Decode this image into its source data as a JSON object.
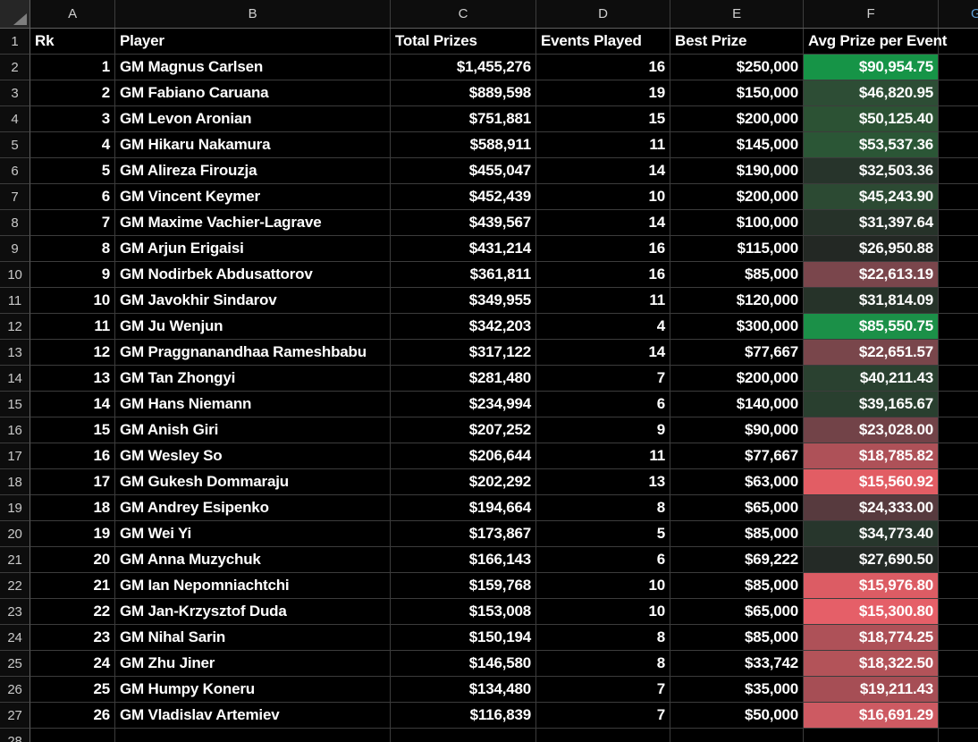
{
  "sheet": {
    "corner": {
      "icon": "select-all-triangle"
    },
    "column_letters": [
      "A",
      "B",
      "C",
      "D",
      "E",
      "F"
    ],
    "clipped_last_column_letter": "G",
    "header_row": {
      "row_number": "1",
      "labels": [
        "Rk",
        "Player",
        "Total Prizes",
        "Events Played",
        "Best Prize",
        "Avg Prize per Event"
      ]
    },
    "rows": [
      {
        "row": "2",
        "rk": "1",
        "player": "GM Magnus Carlsen",
        "total": "$1,455,276",
        "events": "16",
        "best": "$250,000",
        "avg": "$90,954.75",
        "avg_color": "#169447"
      },
      {
        "row": "3",
        "rk": "2",
        "player": "GM Fabiano Caruana",
        "total": "$889,598",
        "events": "19",
        "best": "$150,000",
        "avg": "$46,820.95",
        "avg_color": "#2D4D35"
      },
      {
        "row": "4",
        "rk": "3",
        "player": "GM Levon Aronian",
        "total": "$751,881",
        "events": "15",
        "best": "$200,000",
        "avg": "$50,125.40",
        "avg_color": "#2C5234"
      },
      {
        "row": "5",
        "rk": "4",
        "player": "GM Hikaru Nakamura",
        "total": "$588,911",
        "events": "11",
        "best": "$145,000",
        "avg": "$53,537.36",
        "avg_color": "#2B5636"
      },
      {
        "row": "6",
        "rk": "5",
        "player": "GM Alireza Firouzja",
        "total": "$455,047",
        "events": "14",
        "best": "$190,000",
        "avg": "$32,503.36",
        "avg_color": "#27342B"
      },
      {
        "row": "7",
        "rk": "6",
        "player": "GM Vincent Keymer",
        "total": "$452,439",
        "events": "10",
        "best": "$200,000",
        "avg": "$45,243.90",
        "avg_color": "#2C4A33"
      },
      {
        "row": "8",
        "rk": "7",
        "player": "GM Maxime Vachier-Lagrave",
        "total": "$439,567",
        "events": "14",
        "best": "$100,000",
        "avg": "$31,397.64",
        "avg_color": "#263229"
      },
      {
        "row": "9",
        "rk": "8",
        "player": "GM Arjun Erigaisi",
        "total": "$431,214",
        "events": "16",
        "best": "$115,000",
        "avg": "$26,950.88",
        "avg_color": "#232824"
      },
      {
        "row": "10",
        "rk": "9",
        "player": "GM Nodirbek Abdusattorov",
        "total": "$361,811",
        "events": "16",
        "best": "$85,000",
        "avg": "$22,613.19",
        "avg_color": "#7A464C"
      },
      {
        "row": "11",
        "rk": "10",
        "player": "GM Javokhir Sindarov",
        "total": "$349,955",
        "events": "11",
        "best": "$120,000",
        "avg": "$31,814.09",
        "avg_color": "#263329"
      },
      {
        "row": "12",
        "rk": "11",
        "player": "GM Ju Wenjun",
        "total": "$342,203",
        "events": "4",
        "best": "$300,000",
        "avg": "$85,550.75",
        "avg_color": "#1B9048"
      },
      {
        "row": "13",
        "rk": "12",
        "player": "GM Praggnanandhaa Rameshbabu",
        "total": "$317,122",
        "events": "14",
        "best": "$77,667",
        "avg": "$22,651.57",
        "avg_color": "#79464B"
      },
      {
        "row": "14",
        "rk": "13",
        "player": "GM Tan Zhongyi",
        "total": "$281,480",
        "events": "7",
        "best": "$200,000",
        "avg": "$40,211.43",
        "avg_color": "#2A4130"
      },
      {
        "row": "15",
        "rk": "14",
        "player": "GM Hans Niemann",
        "total": "$234,994",
        "events": "6",
        "best": "$140,000",
        "avg": "$39,165.67",
        "avg_color": "#293F2F"
      },
      {
        "row": "16",
        "rk": "15",
        "player": "GM Anish Giri",
        "total": "$207,252",
        "events": "9",
        "best": "$90,000",
        "avg": "$23,028.00",
        "avg_color": "#724348"
      },
      {
        "row": "17",
        "rk": "16",
        "player": "GM Wesley So",
        "total": "$206,644",
        "events": "11",
        "best": "$77,667",
        "avg": "$18,785.82",
        "avg_color": "#AE5158"
      },
      {
        "row": "18",
        "rk": "17",
        "player": "GM Gukesh Dommaraju",
        "total": "$202,292",
        "events": "13",
        "best": "$63,000",
        "avg": "$15,560.92",
        "avg_color": "#E25D64"
      },
      {
        "row": "19",
        "rk": "18",
        "player": "GM Andrey Esipenko",
        "total": "$194,664",
        "events": "8",
        "best": "$65,000",
        "avg": "$24,333.00",
        "avg_color": "#573A3E"
      },
      {
        "row": "20",
        "rk": "19",
        "player": "GM Wei Yi",
        "total": "$173,867",
        "events": "5",
        "best": "$85,000",
        "avg": "$34,773.40",
        "avg_color": "#27362C"
      },
      {
        "row": "21",
        "rk": "20",
        "player": "GM Anna Muzychuk",
        "total": "$166,143",
        "events": "6",
        "best": "$69,222",
        "avg": "$27,690.50",
        "avg_color": "#242A26"
      },
      {
        "row": "22",
        "rk": "21",
        "player": "GM Ian Nepomniachtchi",
        "total": "$159,768",
        "events": "10",
        "best": "$85,000",
        "avg": "$15,976.80",
        "avg_color": "#DC5C64"
      },
      {
        "row": "23",
        "rk": "22",
        "player": "GM Jan-Krzysztof Duda",
        "total": "$153,008",
        "events": "10",
        "best": "$65,000",
        "avg": "$15,300.80",
        "avg_color": "#E55F68"
      },
      {
        "row": "24",
        "rk": "23",
        "player": "GM Nihal Sarin",
        "total": "$150,194",
        "events": "8",
        "best": "$85,000",
        "avg": "$18,774.25",
        "avg_color": "#AE5158"
      },
      {
        "row": "25",
        "rk": "24",
        "player": "GM Zhu Jiner",
        "total": "$146,580",
        "events": "8",
        "best": "$33,742",
        "avg": "$18,322.50",
        "avg_color": "#B35359"
      },
      {
        "row": "26",
        "rk": "25",
        "player": "GM Humpy Koneru",
        "total": "$134,480",
        "events": "7",
        "best": "$35,000",
        "avg": "$19,211.43",
        "avg_color": "#A64E55"
      },
      {
        "row": "27",
        "rk": "26",
        "player": "GM Vladislav Artemiev",
        "total": "$116,839",
        "events": "7",
        "best": "$50,000",
        "avg": "$16,691.29",
        "avg_color": "#CD5A62"
      }
    ],
    "partial_bottom_row_number": "28"
  },
  "colors": {
    "cell_background": "#000000",
    "header_background": "#0d0d0d",
    "gridline": "#3c3c3c",
    "header_separator": "#5f5f5f",
    "header_text": "#cfcfcf",
    "cell_text": "#ffffff",
    "scale_max_green": "#169447",
    "scale_min_red": "#E55F68",
    "clipped_column_letter_tint": "#5f9fd6"
  }
}
